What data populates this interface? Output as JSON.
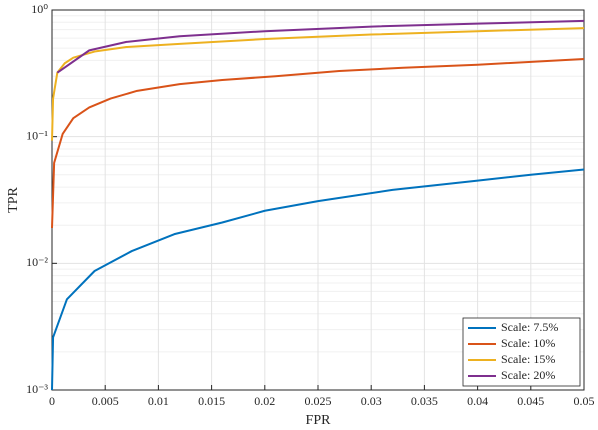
{
  "chart_data": {
    "type": "line",
    "xlabel": "FPR",
    "ylabel": "TPR",
    "xlim": [
      0,
      0.05
    ],
    "xticks": [
      0,
      0.005,
      0.01,
      0.015,
      0.02,
      0.025,
      0.03,
      0.035,
      0.04,
      0.045,
      0.05
    ],
    "ylim": [
      0.001,
      1
    ],
    "yscale": "log",
    "yticks": [
      {
        "value": 0.001,
        "label": "10⁻³"
      },
      {
        "value": 0.01,
        "label": "10⁻²"
      },
      {
        "value": 0.1,
        "label": "10⁻¹"
      },
      {
        "value": 1,
        "label": "10⁰"
      }
    ],
    "grid": true,
    "minor_grid": true,
    "legend": "lower right",
    "series": [
      {
        "name": "Scale: 7.5%",
        "color": "#0072BD",
        "x": [
          0,
          0.0001,
          0.0014,
          0.004,
          0.0075,
          0.0115,
          0.016,
          0.02,
          0.025,
          0.032,
          0.04,
          0.045,
          0.05
        ],
        "values": [
          0.001,
          0.0026,
          0.0052,
          0.0087,
          0.0125,
          0.017,
          0.021,
          0.026,
          0.031,
          0.038,
          0.045,
          0.05,
          0.055
        ]
      },
      {
        "name": "Scale: 10%",
        "color": "#D95319",
        "x": [
          0,
          0.0002,
          0.001,
          0.002,
          0.0035,
          0.0055,
          0.008,
          0.012,
          0.016,
          0.021,
          0.027,
          0.033,
          0.04,
          0.05
        ],
        "values": [
          0.019,
          0.062,
          0.105,
          0.14,
          0.17,
          0.2,
          0.23,
          0.26,
          0.28,
          0.3,
          0.33,
          0.35,
          0.37,
          0.41
        ]
      },
      {
        "name": "Scale: 15%",
        "color": "#EDB120",
        "x": [
          0,
          0.0001,
          0.0005,
          0.0012,
          0.002,
          0.004,
          0.007,
          0.012,
          0.02,
          0.03,
          0.04,
          0.05
        ],
        "values": [
          0.093,
          0.2,
          0.32,
          0.38,
          0.42,
          0.47,
          0.51,
          0.54,
          0.59,
          0.64,
          0.68,
          0.72
        ]
      },
      {
        "name": "Scale: 20%",
        "color": "#7E2F8E",
        "x": [
          0.0005,
          0.0035,
          0.007,
          0.012,
          0.02,
          0.03,
          0.04,
          0.05
        ],
        "values": [
          0.32,
          0.48,
          0.56,
          0.62,
          0.68,
          0.74,
          0.78,
          0.82
        ]
      }
    ]
  }
}
